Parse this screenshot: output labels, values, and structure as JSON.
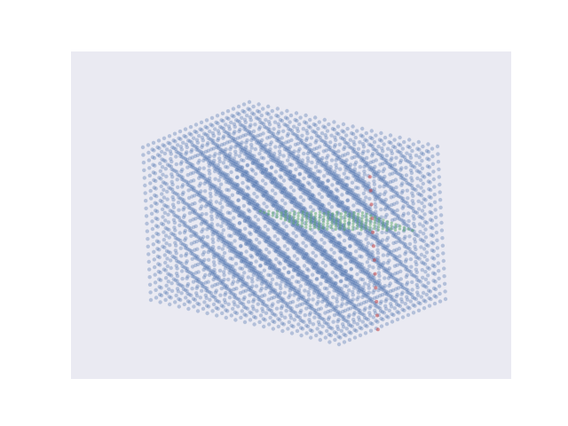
{
  "chart_data": {
    "type": "scatter",
    "projection": "3d",
    "title": "",
    "xlabel": "",
    "ylabel": "",
    "zlabel": "",
    "axes_visible": false,
    "grid": false,
    "legend": "none",
    "background_color": "#eaeaf2",
    "series": [
      {
        "marker_color": "#4c72b0",
        "alpha": 0.5,
        "shape": "regular 3D lattice",
        "lattice": {
          "x_range": [
            0,
            20
          ],
          "y_range": [
            0,
            20
          ],
          "z_range": [
            0,
            20
          ],
          "step": 1
        }
      },
      {
        "marker_color": "#55a868",
        "alpha": 0.5,
        "shape": "diagonal sheet inside cube",
        "approx_points": 180
      },
      {
        "marker_color": "#c44e52",
        "alpha": 0.6,
        "shape": "short vertical line near front edge",
        "approx_points": 12
      }
    ]
  }
}
